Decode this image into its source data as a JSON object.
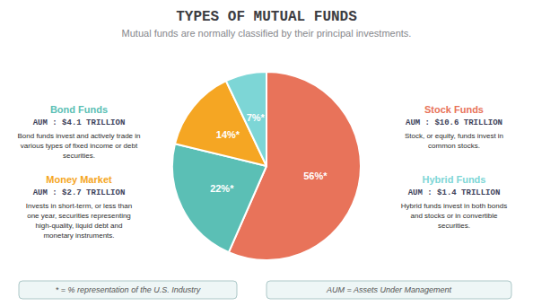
{
  "chart_data": {
    "type": "pie",
    "title": "TYPES OF MUTUAL FUNDS",
    "subtitle": "Mutual funds are normally classified by their principal investments.",
    "values": [
      56,
      22,
      14,
      7
    ],
    "value_labels": [
      "56%*",
      "22%*",
      "14%*",
      "7%*"
    ],
    "colors": [
      "#e8735a",
      "#5bbfb5",
      "#f5a623",
      "#7dd6d6"
    ],
    "data_labels": true,
    "annotations": [
      {
        "text": "Bond Funds",
        "color": "#5bbfb5"
      },
      {
        "text": "AUM : $4.1 TRILLION"
      },
      {
        "text": "Bond funds invest and actively trade in\nvarious types of fixed income or debt\nsecurities."
      },
      {
        "text": "Money Market",
        "color": "#f5a623"
      },
      {
        "text": "AUM : $2.7 TRILLION"
      },
      {
        "text": "Invests in short-term, or less than\none year, securities representing\nhigh-quality, liquid debt and\nmonetary instruments."
      },
      {
        "text": "Stock Funds",
        "color": "#e8735a"
      },
      {
        "text": "AUM : $10.6 TRILLION"
      },
      {
        "text": "Stock, or equity, funds invest in\ncommon stocks."
      },
      {
        "text": "Hybrid Funds",
        "color": "#7dd6d6"
      },
      {
        "text": "AUM : $1.4 TRILLION"
      },
      {
        "text": "Hybrid funds invest in both bonds\nand stocks or in convertible\nsecurities."
      },
      {
        "text": "* = % representation of the U.S. Industry"
      },
      {
        "text": "AUM = Assets Under Management"
      }
    ]
  }
}
